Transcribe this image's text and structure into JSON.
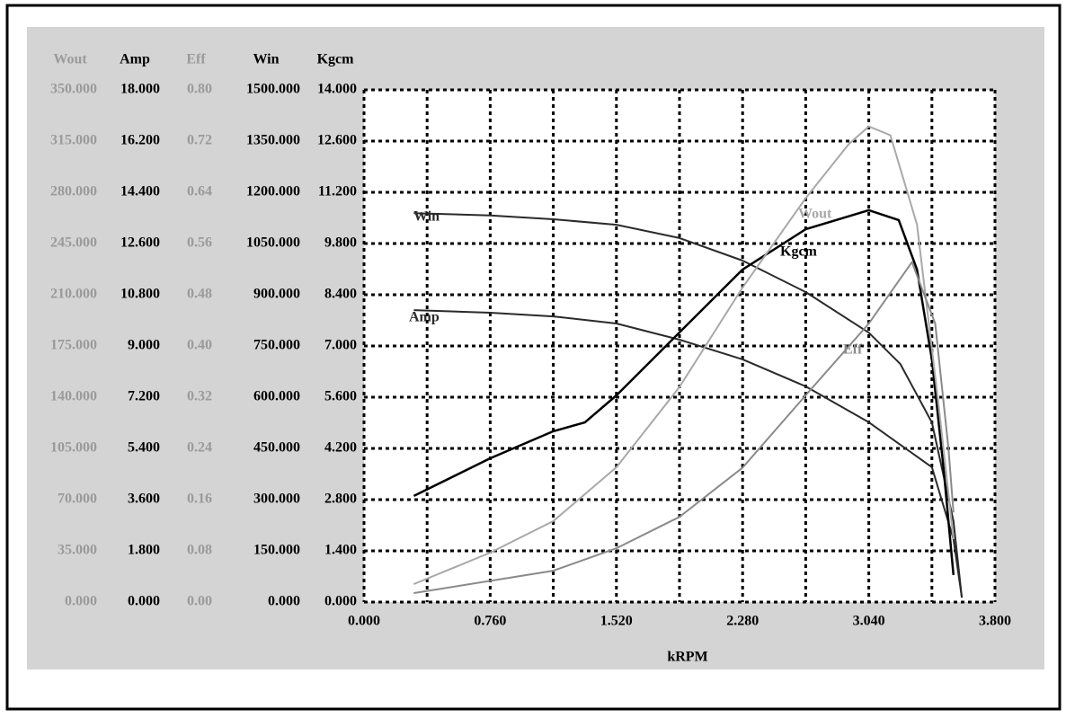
{
  "chart_data": {
    "type": "line",
    "x_label": "kRPM",
    "xlim": [
      0,
      3.8
    ],
    "xticks": [
      {
        "value": 0,
        "label": "0.000"
      },
      {
        "value": 0.76,
        "label": "0.760"
      },
      {
        "value": 1.52,
        "label": "1.520"
      },
      {
        "value": 2.28,
        "label": "2.280"
      },
      {
        "value": 3.04,
        "label": "3.040"
      },
      {
        "value": 3.8,
        "label": "3.800"
      }
    ],
    "x_minor_ticks": [
      0.38,
      1.14,
      1.9,
      2.66,
      3.42
    ],
    "grid": true,
    "y_axes": [
      {
        "title": "Wout",
        "color": "#9a9a9a",
        "ylim": [
          0,
          350
        ],
        "yticks": [
          {
            "value": 0,
            "label": "0.000"
          },
          {
            "value": 35,
            "label": "35.000"
          },
          {
            "value": 70,
            "label": "70.000"
          },
          {
            "value": 105,
            "label": "105.000"
          },
          {
            "value": 140,
            "label": "140.000"
          },
          {
            "value": 175,
            "label": "175.000"
          },
          {
            "value": 210,
            "label": "210.000"
          },
          {
            "value": 245,
            "label": "245.000"
          },
          {
            "value": 280,
            "label": "280.000"
          },
          {
            "value": 315,
            "label": "315.000"
          },
          {
            "value": 350,
            "label": "350.000"
          }
        ]
      },
      {
        "title": "Amp",
        "color": "#000000",
        "ylim": [
          0,
          18
        ],
        "yticks": [
          {
            "value": 0,
            "label": "0.000"
          },
          {
            "value": 1.8,
            "label": "1.800"
          },
          {
            "value": 3.6,
            "label": "3.600"
          },
          {
            "value": 5.4,
            "label": "5.400"
          },
          {
            "value": 7.2,
            "label": "7.200"
          },
          {
            "value": 9,
            "label": "9.000"
          },
          {
            "value": 10.8,
            "label": "10.800"
          },
          {
            "value": 12.6,
            "label": "12.600"
          },
          {
            "value": 14.4,
            "label": "14.400"
          },
          {
            "value": 16.2,
            "label": "16.200"
          },
          {
            "value": 18,
            "label": "18.000"
          }
        ]
      },
      {
        "title": "Eff",
        "color": "#9a9a9a",
        "ylim": [
          0,
          0.8
        ],
        "yticks": [
          {
            "value": 0,
            "label": "0.00"
          },
          {
            "value": 0.08,
            "label": "0.08"
          },
          {
            "value": 0.16,
            "label": "0.16"
          },
          {
            "value": 0.24,
            "label": "0.24"
          },
          {
            "value": 0.32,
            "label": "0.32"
          },
          {
            "value": 0.4,
            "label": "0.40"
          },
          {
            "value": 0.48,
            "label": "0.48"
          },
          {
            "value": 0.56,
            "label": "0.56"
          },
          {
            "value": 0.64,
            "label": "0.64"
          },
          {
            "value": 0.72,
            "label": "0.72"
          },
          {
            "value": 0.8,
            "label": "0.80"
          }
        ]
      },
      {
        "title": "Win",
        "color": "#000000",
        "ylim": [
          0,
          1500
        ],
        "yticks": [
          {
            "value": 0,
            "label": "0.000"
          },
          {
            "value": 150,
            "label": "150.000"
          },
          {
            "value": 300,
            "label": "300.000"
          },
          {
            "value": 450,
            "label": "450.000"
          },
          {
            "value": 600,
            "label": "600.000"
          },
          {
            "value": 750,
            "label": "750.000"
          },
          {
            "value": 900,
            "label": "900.000"
          },
          {
            "value": 1050,
            "label": "1050.000"
          },
          {
            "value": 1200,
            "label": "1200.000"
          },
          {
            "value": 1350,
            "label": "1350.000"
          },
          {
            "value": 1500,
            "label": "1500.000"
          }
        ]
      },
      {
        "title": "Kgcm",
        "color": "#000000",
        "ylim": [
          0,
          14
        ],
        "yticks": [
          {
            "value": 0,
            "label": "0.000"
          },
          {
            "value": 1.4,
            "label": "1.400"
          },
          {
            "value": 2.8,
            "label": "2.800"
          },
          {
            "value": 4.2,
            "label": "4.200"
          },
          {
            "value": 5.6,
            "label": "5.600"
          },
          {
            "value": 7,
            "label": "7.000"
          },
          {
            "value": 8.4,
            "label": "8.400"
          },
          {
            "value": 9.8,
            "label": "9.800"
          },
          {
            "value": 11.2,
            "label": "11.200"
          },
          {
            "value": 12.6,
            "label": "12.600"
          },
          {
            "value": 14,
            "label": "14.000"
          }
        ]
      }
    ],
    "series": [
      {
        "name": "Win",
        "axis": 3,
        "color": "#2a2a2a",
        "x": [
          0.3,
          0.76,
          1.14,
          1.52,
          1.9,
          2.28,
          2.66,
          3.04,
          3.23,
          3.42,
          3.55,
          3.6
        ],
        "values": [
          1139,
          1132,
          1121,
          1105,
          1066,
          1000,
          908,
          789,
          697,
          526,
          237,
          13
        ]
      },
      {
        "name": "Amp",
        "axis": 1,
        "color": "#2a2a2a",
        "x": [
          0.3,
          0.76,
          1.14,
          1.52,
          1.9,
          2.28,
          2.66,
          3.04,
          3.23,
          3.42,
          3.55,
          3.6
        ],
        "values": [
          10.26,
          10.17,
          10.04,
          9.79,
          9.22,
          8.53,
          7.58,
          6.32,
          5.53,
          4.74,
          2.21,
          0.16
        ]
      },
      {
        "name": "Kgcm",
        "axis": 4,
        "color": "#000000",
        "x": [
          0.3,
          0.76,
          1.14,
          1.33,
          1.52,
          1.9,
          2.28,
          2.66,
          3.04,
          3.22,
          3.33,
          3.42,
          3.49,
          3.55
        ],
        "values": [
          2.9,
          3.93,
          4.67,
          4.91,
          5.65,
          7.37,
          9.09,
          10.19,
          10.71,
          10.44,
          9.09,
          6.63,
          3.68,
          0.74
        ]
      },
      {
        "name": "Wout",
        "axis": 0,
        "color": "#a8a8a8",
        "x": [
          0.3,
          0.76,
          1.14,
          1.52,
          1.9,
          2.28,
          2.66,
          2.92,
          3.04,
          3.17,
          3.33,
          3.46,
          3.55
        ],
        "values": [
          12.3,
          33.8,
          55.3,
          92.1,
          147,
          215,
          276,
          313,
          325,
          319,
          258,
          135,
          43
        ]
      },
      {
        "name": "Eff",
        "axis": 2,
        "color": "#8a8a8a",
        "x": [
          0.3,
          1.14,
          1.52,
          1.9,
          2.28,
          2.66,
          3.04,
          3.3,
          3.44,
          3.52,
          3.55
        ],
        "values": [
          0.014,
          0.049,
          0.084,
          0.133,
          0.21,
          0.323,
          0.435,
          0.531,
          0.435,
          0.239,
          0.14
        ]
      }
    ]
  }
}
